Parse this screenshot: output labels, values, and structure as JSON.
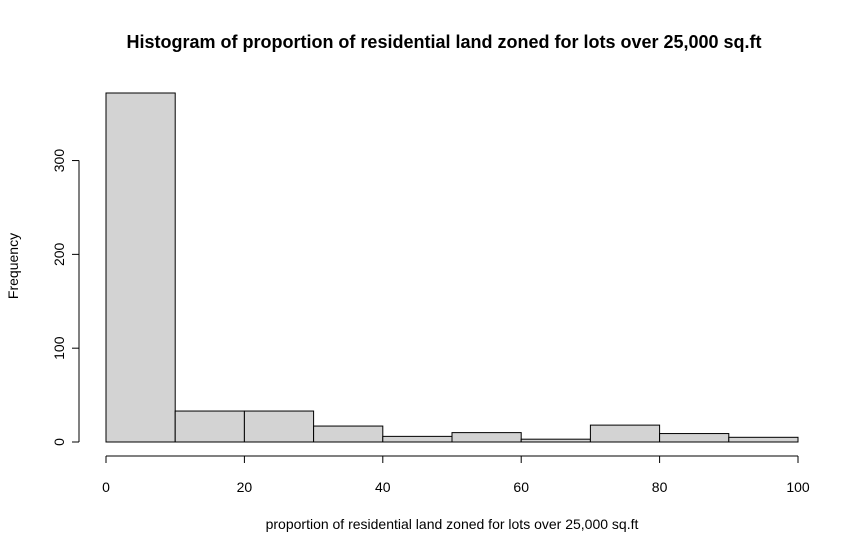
{
  "chart_data": {
    "type": "bar",
    "title": "Histogram of proportion of residential land zoned for lots over 25,000 sq.ft",
    "xlabel": "proportion of residential land zoned for lots over 25,000 sq.ft",
    "ylabel": "Frequency",
    "bins": [
      {
        "start": 0,
        "end": 10,
        "count": 372
      },
      {
        "start": 10,
        "end": 20,
        "count": 33
      },
      {
        "start": 20,
        "end": 30,
        "count": 33
      },
      {
        "start": 30,
        "end": 40,
        "count": 17
      },
      {
        "start": 40,
        "end": 50,
        "count": 6
      },
      {
        "start": 50,
        "end": 60,
        "count": 10
      },
      {
        "start": 60,
        "end": 70,
        "count": 3
      },
      {
        "start": 70,
        "end": 80,
        "count": 18
      },
      {
        "start": 80,
        "end": 90,
        "count": 9
      },
      {
        "start": 90,
        "end": 100,
        "count": 5
      }
    ],
    "xlim": [
      0,
      100
    ],
    "ylim": [
      0,
      372
    ],
    "x_ticks": [
      "0",
      "20",
      "40",
      "60",
      "80",
      "100"
    ],
    "y_ticks": [
      "0",
      "100",
      "200",
      "300"
    ],
    "grid": false,
    "colors": {
      "bar_fill": "#d3d3d3",
      "bar_stroke": "#000000"
    }
  }
}
